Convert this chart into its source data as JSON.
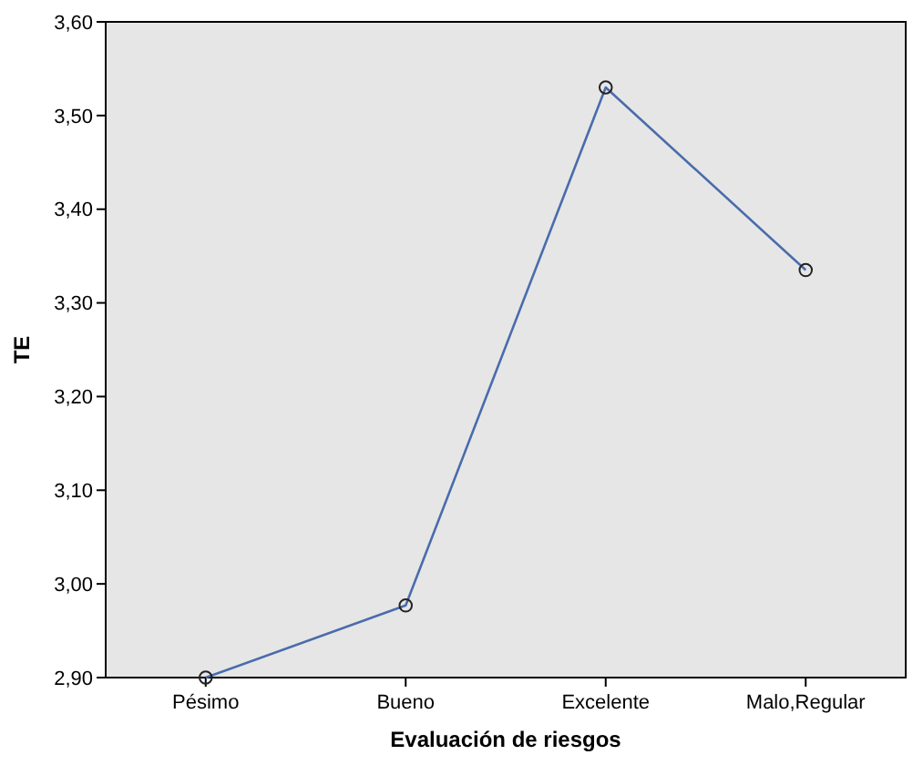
{
  "chart_data": {
    "type": "line",
    "xlabel": "Evaluación de riesgos",
    "ylabel": "TE",
    "categories": [
      "Pésimo",
      "Bueno",
      "Excelente",
      "Malo,Regular"
    ],
    "series": [
      {
        "color": "#4a6cac",
        "values": [
          2.9,
          2.977,
          3.53,
          3.335
        ]
      }
    ],
    "ylim": [
      2.9,
      3.6
    ],
    "yticks": [
      {
        "value": 2.9,
        "label": "2,90"
      },
      {
        "value": 3.0,
        "label": "3,00"
      },
      {
        "value": 3.1,
        "label": "3,10"
      },
      {
        "value": 3.2,
        "label": "3,20"
      },
      {
        "value": 3.3,
        "label": "3,30"
      },
      {
        "value": 3.4,
        "label": "3,40"
      },
      {
        "value": 3.5,
        "label": "3,50"
      },
      {
        "value": 3.6,
        "label": "3,60"
      }
    ],
    "marker": "circle",
    "grid": false
  }
}
